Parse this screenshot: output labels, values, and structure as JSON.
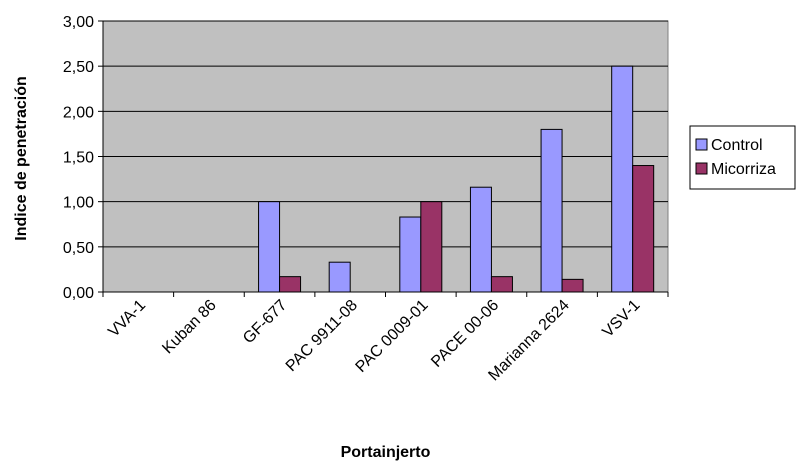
{
  "chart_data": {
    "type": "bar",
    "title": "",
    "xlabel": "Portainjerto",
    "ylabel": "Indice de penetración",
    "ylim": [
      0,
      3
    ],
    "yticks": [
      "0,00",
      "0,50",
      "1,00",
      "1,50",
      "2,00",
      "2,50",
      "3,00"
    ],
    "grid": true,
    "legend_position": "right",
    "plot_background": "#c0c0c0",
    "categories": [
      "VVA-1",
      "Kuban 86",
      "GF-677",
      "PAC 9911-08",
      "PAC 0009-01",
      "PACE 00-06",
      "Marianna 2624",
      "VSV-1"
    ],
    "series": [
      {
        "name": "Control",
        "color": "#9999ff",
        "values": [
          0,
          0,
          1.0,
          0.33,
          0.83,
          1.16,
          1.8,
          2.5
        ]
      },
      {
        "name": "Micorriza",
        "color": "#993366",
        "values": [
          0,
          0,
          0.17,
          0,
          1.0,
          0.17,
          0.14,
          1.4
        ]
      }
    ]
  }
}
